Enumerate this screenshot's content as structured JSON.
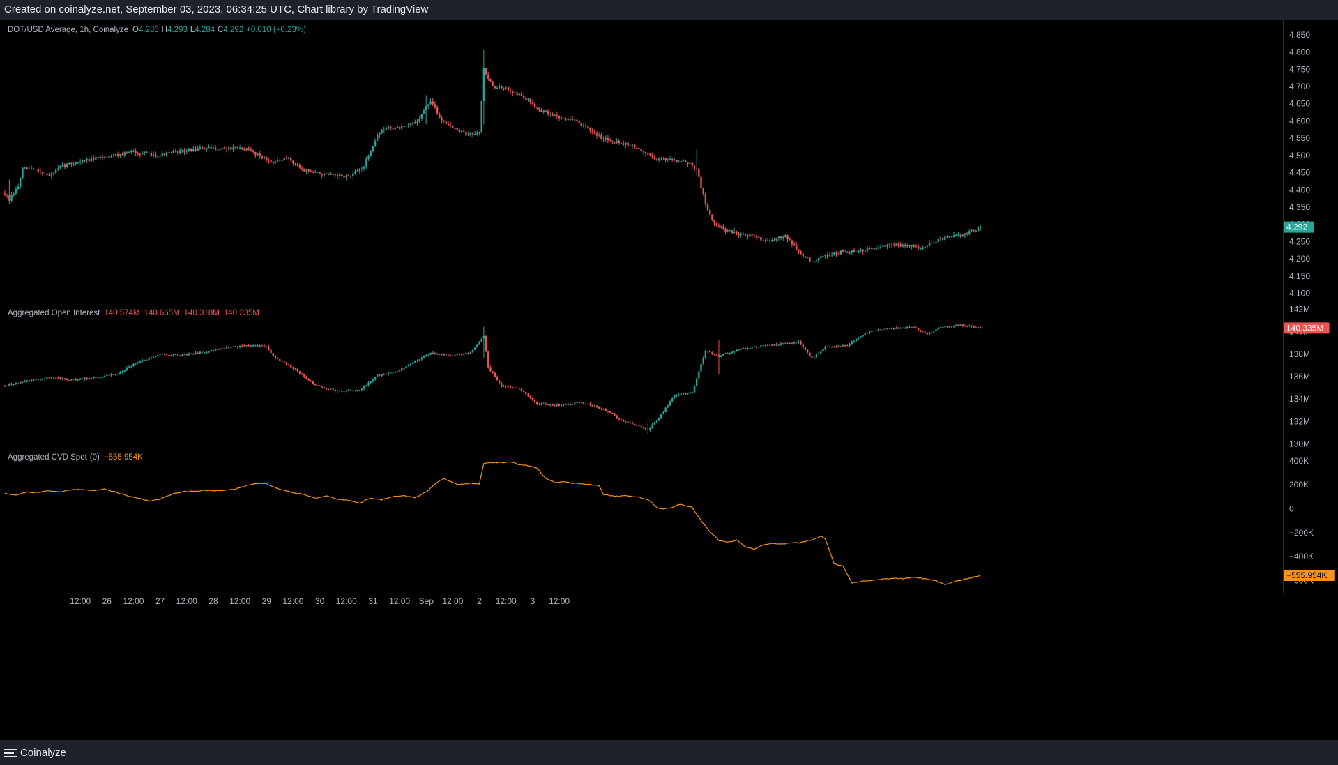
{
  "header": {
    "credit": "Created on coinalyze.net, September 03, 2023, 06:34:25 UTC, Chart library by TradingView"
  },
  "footer": {
    "brand": "Coinalyze"
  },
  "colors": {
    "up": "#26a69a",
    "down": "#ef5350",
    "cvd": "#f7931a",
    "grid": "#2a2e39",
    "axis_text": "#b2b5be",
    "legend_label": "#b2b5be"
  },
  "chart_data": [
    {
      "type": "candlestick",
      "legend": {
        "title": "DOT/USD Average, 1h, Coinalyze",
        "o_label": "O",
        "o": "4.286",
        "h_label": "H",
        "h": "4.293",
        "l_label": "L",
        "l": "4.284",
        "c_label": "C",
        "c": "4.292",
        "change": "+0.010 (+0.23%)"
      },
      "y_ticks": [
        "4.100",
        "4.150",
        "4.200",
        "4.250",
        "4.300",
        "4.350",
        "4.400",
        "4.450",
        "4.500",
        "4.550",
        "4.600",
        "4.650",
        "4.700",
        "4.750",
        "4.800",
        "4.850"
      ],
      "ylim": [
        4.085,
        4.87
      ],
      "last_value_label": "4.292",
      "last_value": 4.292,
      "close_anchors": [
        [
          0,
          4.39
        ],
        [
          2,
          4.37
        ],
        [
          6,
          4.41
        ],
        [
          8,
          4.46
        ],
        [
          14,
          4.46
        ],
        [
          20,
          4.44
        ],
        [
          26,
          4.47
        ],
        [
          32,
          4.48
        ],
        [
          40,
          4.49
        ],
        [
          48,
          4.5
        ],
        [
          58,
          4.51
        ],
        [
          68,
          4.5
        ],
        [
          78,
          4.51
        ],
        [
          88,
          4.52
        ],
        [
          98,
          4.52
        ],
        [
          108,
          4.52
        ],
        [
          115,
          4.5
        ],
        [
          120,
          4.48
        ],
        [
          128,
          4.49
        ],
        [
          134,
          4.46
        ],
        [
          140,
          4.45
        ],
        [
          148,
          4.44
        ],
        [
          156,
          4.44
        ],
        [
          162,
          4.47
        ],
        [
          168,
          4.56
        ],
        [
          172,
          4.58
        ],
        [
          180,
          4.58
        ],
        [
          186,
          4.6
        ],
        [
          192,
          4.66
        ],
        [
          196,
          4.61
        ],
        [
          202,
          4.58
        ],
        [
          208,
          4.56
        ],
        [
          214,
          4.57
        ],
        [
          216,
          4.75
        ],
        [
          220,
          4.7
        ],
        [
          228,
          4.69
        ],
        [
          236,
          4.66
        ],
        [
          242,
          4.63
        ],
        [
          250,
          4.61
        ],
        [
          258,
          4.6
        ],
        [
          264,
          4.57
        ],
        [
          270,
          4.55
        ],
        [
          276,
          4.54
        ],
        [
          282,
          4.53
        ],
        [
          288,
          4.51
        ],
        [
          294,
          4.49
        ],
        [
          300,
          4.49
        ],
        [
          308,
          4.48
        ],
        [
          312,
          4.46
        ],
        [
          316,
          4.36
        ],
        [
          320,
          4.3
        ],
        [
          326,
          4.28
        ],
        [
          334,
          4.27
        ],
        [
          340,
          4.26
        ],
        [
          346,
          4.25
        ],
        [
          352,
          4.27
        ],
        [
          358,
          4.22
        ],
        [
          364,
          4.19
        ],
        [
          370,
          4.21
        ],
        [
          378,
          4.22
        ],
        [
          384,
          4.22
        ],
        [
          392,
          4.23
        ],
        [
          400,
          4.24
        ],
        [
          408,
          4.24
        ],
        [
          414,
          4.23
        ],
        [
          418,
          4.25
        ],
        [
          424,
          4.26
        ],
        [
          432,
          4.27
        ],
        [
          440,
          4.29
        ]
      ],
      "spikes": [
        [
          216,
          4.805,
          4.59
        ],
        [
          2,
          4.43,
          4.36
        ],
        [
          364,
          4.24,
          4.15
        ],
        [
          312,
          4.52,
          4.44
        ],
        [
          190,
          4.675,
          4.59
        ]
      ],
      "seed": 7
    },
    {
      "type": "candlestick",
      "legend": {
        "title": "Aggregated Open Interest",
        "o": "140.574M",
        "h": "140.665M",
        "l": "140.318M",
        "c": "140.335M"
      },
      "y_ticks": [
        "130M",
        "132M",
        "134M",
        "136M",
        "138M",
        "140M",
        "142M"
      ],
      "ylim": [
        129.9,
        142.1
      ],
      "last_value_label": "140.335M",
      "last_value": 140.335,
      "close_anchors": [
        [
          0,
          135.2
        ],
        [
          10,
          135.6
        ],
        [
          20,
          135.9
        ],
        [
          30,
          135.7
        ],
        [
          40,
          135.9
        ],
        [
          50,
          136.2
        ],
        [
          60,
          137.3
        ],
        [
          70,
          138.0
        ],
        [
          80,
          137.9
        ],
        [
          90,
          138.2
        ],
        [
          100,
          138.6
        ],
        [
          110,
          138.8
        ],
        [
          118,
          138.7
        ],
        [
          122,
          137.6
        ],
        [
          130,
          136.8
        ],
        [
          140,
          135.2
        ],
        [
          150,
          134.7
        ],
        [
          160,
          134.8
        ],
        [
          168,
          136.1
        ],
        [
          176,
          136.4
        ],
        [
          184,
          137.2
        ],
        [
          192,
          138.1
        ],
        [
          200,
          137.9
        ],
        [
          210,
          138.1
        ],
        [
          216,
          139.6
        ],
        [
          218,
          136.8
        ],
        [
          224,
          135.2
        ],
        [
          232,
          134.9
        ],
        [
          240,
          133.6
        ],
        [
          250,
          133.4
        ],
        [
          260,
          133.7
        ],
        [
          270,
          133.1
        ],
        [
          278,
          132.1
        ],
        [
          284,
          131.7
        ],
        [
          290,
          131.2
        ],
        [
          296,
          132.6
        ],
        [
          302,
          134.3
        ],
        [
          310,
          134.6
        ],
        [
          316,
          138.3
        ],
        [
          322,
          137.8
        ],
        [
          330,
          138.4
        ],
        [
          340,
          138.7
        ],
        [
          350,
          138.9
        ],
        [
          358,
          139.1
        ],
        [
          364,
          137.6
        ],
        [
          370,
          138.6
        ],
        [
          380,
          138.8
        ],
        [
          390,
          140.1
        ],
        [
          400,
          140.3
        ],
        [
          410,
          140.4
        ],
        [
          416,
          139.8
        ],
        [
          422,
          140.4
        ],
        [
          432,
          140.6
        ],
        [
          440,
          140.335
        ]
      ],
      "spikes": [
        [
          216,
          140.45,
          137.7
        ],
        [
          364,
          138.3,
          136.1
        ],
        [
          290,
          131.9,
          130.9
        ],
        [
          322,
          139.3,
          136.2
        ]
      ],
      "seed": 13
    },
    {
      "type": "line",
      "legend": {
        "title": "Aggregated CVD Spot",
        "param": "(0)",
        "value": "−555.954K"
      },
      "y_ticks": [
        "−600K",
        "−400K",
        "−200K",
        "0",
        "200K",
        "400K"
      ],
      "ylim": [
        -690,
        475
      ],
      "unit": "K",
      "last_value_label": "−555.954K",
      "last_value": -555.954,
      "anchors": [
        [
          0,
          130
        ],
        [
          5,
          115
        ],
        [
          10,
          140
        ],
        [
          15,
          135
        ],
        [
          20,
          152
        ],
        [
          25,
          140
        ],
        [
          30,
          160
        ],
        [
          35,
          163
        ],
        [
          40,
          150
        ],
        [
          45,
          165
        ],
        [
          50,
          140
        ],
        [
          55,
          108
        ],
        [
          60,
          90
        ],
        [
          65,
          65
        ],
        [
          70,
          80
        ],
        [
          75,
          120
        ],
        [
          80,
          143
        ],
        [
          85,
          148
        ],
        [
          90,
          152
        ],
        [
          95,
          150
        ],
        [
          100,
          155
        ],
        [
          105,
          170
        ],
        [
          110,
          200
        ],
        [
          115,
          215
        ],
        [
          118,
          210
        ],
        [
          122,
          175
        ],
        [
          125,
          160
        ],
        [
          130,
          135
        ],
        [
          135,
          120
        ],
        [
          140,
          90
        ],
        [
          145,
          105
        ],
        [
          150,
          80
        ],
        [
          155,
          70
        ],
        [
          160,
          50
        ],
        [
          165,
          90
        ],
        [
          170,
          75
        ],
        [
          175,
          100
        ],
        [
          180,
          110
        ],
        [
          185,
          95
        ],
        [
          190,
          140
        ],
        [
          195,
          220
        ],
        [
          198,
          255
        ],
        [
          202,
          220
        ],
        [
          205,
          200
        ],
        [
          210,
          215
        ],
        [
          214,
          210
        ],
        [
          216,
          380
        ],
        [
          222,
          385
        ],
        [
          228,
          390
        ],
        [
          232,
          370
        ],
        [
          236,
          360
        ],
        [
          240,
          340
        ],
        [
          244,
          250
        ],
        [
          248,
          220
        ],
        [
          252,
          225
        ],
        [
          256,
          215
        ],
        [
          260,
          210
        ],
        [
          264,
          200
        ],
        [
          268,
          190
        ],
        [
          270,
          120
        ],
        [
          275,
          105
        ],
        [
          280,
          110
        ],
        [
          285,
          100
        ],
        [
          290,
          75
        ],
        [
          295,
          0
        ],
        [
          300,
          5
        ],
        [
          305,
          40
        ],
        [
          308,
          20
        ],
        [
          310,
          10
        ],
        [
          314,
          -100
        ],
        [
          318,
          -190
        ],
        [
          322,
          -265
        ],
        [
          326,
          -280
        ],
        [
          330,
          -260
        ],
        [
          334,
          -320
        ],
        [
          338,
          -340
        ],
        [
          342,
          -300
        ],
        [
          346,
          -290
        ],
        [
          352,
          -290
        ],
        [
          358,
          -285
        ],
        [
          364,
          -260
        ],
        [
          368,
          -230
        ],
        [
          370,
          -250
        ],
        [
          374,
          -460
        ],
        [
          378,
          -480
        ],
        [
          382,
          -620
        ],
        [
          386,
          -605
        ],
        [
          390,
          -600
        ],
        [
          395,
          -590
        ],
        [
          400,
          -580
        ],
        [
          405,
          -585
        ],
        [
          410,
          -570
        ],
        [
          415,
          -585
        ],
        [
          420,
          -600
        ],
        [
          424,
          -635
        ],
        [
          428,
          -610
        ],
        [
          432,
          -590
        ],
        [
          436,
          -575
        ],
        [
          440,
          -555.954
        ]
      ]
    }
  ],
  "x_axis": {
    "labels": [
      {
        "text": "12:00",
        "bar": 12
      },
      {
        "text": "26",
        "bar": 24
      },
      {
        "text": "12:00",
        "bar": 36
      },
      {
        "text": "27",
        "bar": 48
      },
      {
        "text": "12:00",
        "bar": 60
      },
      {
        "text": "28",
        "bar": 72
      },
      {
        "text": "12:00",
        "bar": 84
      },
      {
        "text": "29",
        "bar": 96
      },
      {
        "text": "12:00",
        "bar": 108
      },
      {
        "text": "30",
        "bar": 120
      },
      {
        "text": "12:00",
        "bar": 132
      },
      {
        "text": "31",
        "bar": 144
      },
      {
        "text": "12:00",
        "bar": 156
      },
      {
        "text": "Sep",
        "bar": 168
      },
      {
        "text": "12:00",
        "bar": 180
      },
      {
        "text": "2",
        "bar": 192
      },
      {
        "text": "12:00",
        "bar": 204
      },
      {
        "text": "3",
        "bar": 216
      },
      {
        "text": "12:00",
        "bar": 228
      }
    ]
  }
}
